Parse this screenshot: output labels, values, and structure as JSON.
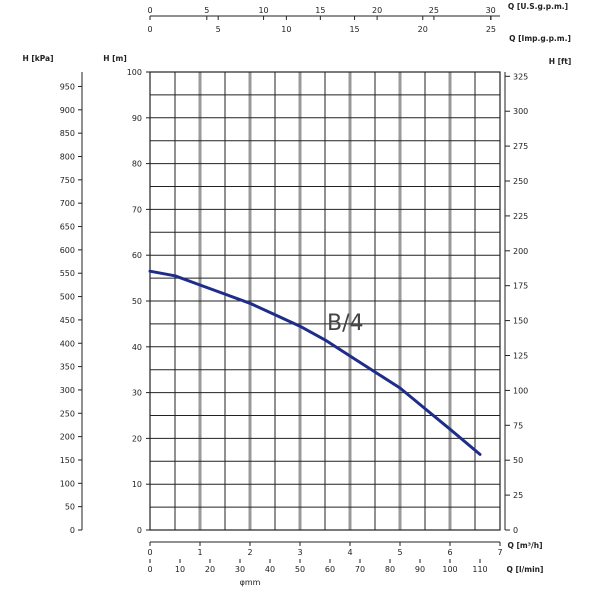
{
  "chart_data": {
    "type": "line",
    "axes": {
      "top_usgpm": {
        "label": "Q [U.S.g.p.m.]",
        "range": [
          0,
          30
        ],
        "ticks": [
          0,
          5,
          10,
          15,
          20,
          25,
          30
        ]
      },
      "top_impgpm": {
        "label": "Q [Imp.g.p.m.]",
        "range": [
          0,
          25
        ],
        "ticks": [
          0,
          5,
          10,
          15,
          20,
          25
        ]
      },
      "left_kpa": {
        "label": "H [kPa]",
        "ticks": [
          0,
          50,
          100,
          150,
          200,
          250,
          300,
          350,
          400,
          450,
          500,
          550,
          600,
          650,
          700,
          750,
          800,
          850,
          900,
          950
        ]
      },
      "left_m": {
        "label": "H [m]",
        "range": [
          0,
          100
        ],
        "ticks": [
          0,
          10,
          20,
          30,
          40,
          50,
          60,
          70,
          80,
          90,
          100
        ]
      },
      "right_ft": {
        "label": "H [ft]",
        "ticks": [
          0,
          25,
          50,
          75,
          100,
          125,
          150,
          175,
          200,
          225,
          250,
          275,
          300,
          325
        ]
      },
      "bottom_m3h": {
        "label": "Q [m³/h]",
        "range": [
          0,
          7
        ],
        "ticks": [
          0,
          1,
          2,
          3,
          4,
          5,
          6,
          7
        ]
      },
      "bottom_lmin": {
        "label": "Q [l/min]",
        "ticks": [
          0,
          10,
          20,
          30,
          40,
          50,
          60,
          70,
          80,
          90,
          100,
          110
        ]
      }
    },
    "bottom_extra_label": "φmm",
    "series": [
      {
        "name": "B/4",
        "color": "#1f2d8a",
        "x": [
          0,
          0.5,
          1,
          1.5,
          2,
          2.5,
          3,
          3.5,
          4,
          4.5,
          5,
          5.5,
          6,
          6.6
        ],
        "y": [
          56.5,
          55.5,
          53.5,
          51.5,
          49.5,
          47,
          44.5,
          41.5,
          38,
          34.5,
          31,
          26.5,
          22,
          16.5
        ]
      }
    ],
    "grid": true,
    "xlim": [
      0,
      7
    ],
    "ylim": [
      0,
      100
    ]
  }
}
